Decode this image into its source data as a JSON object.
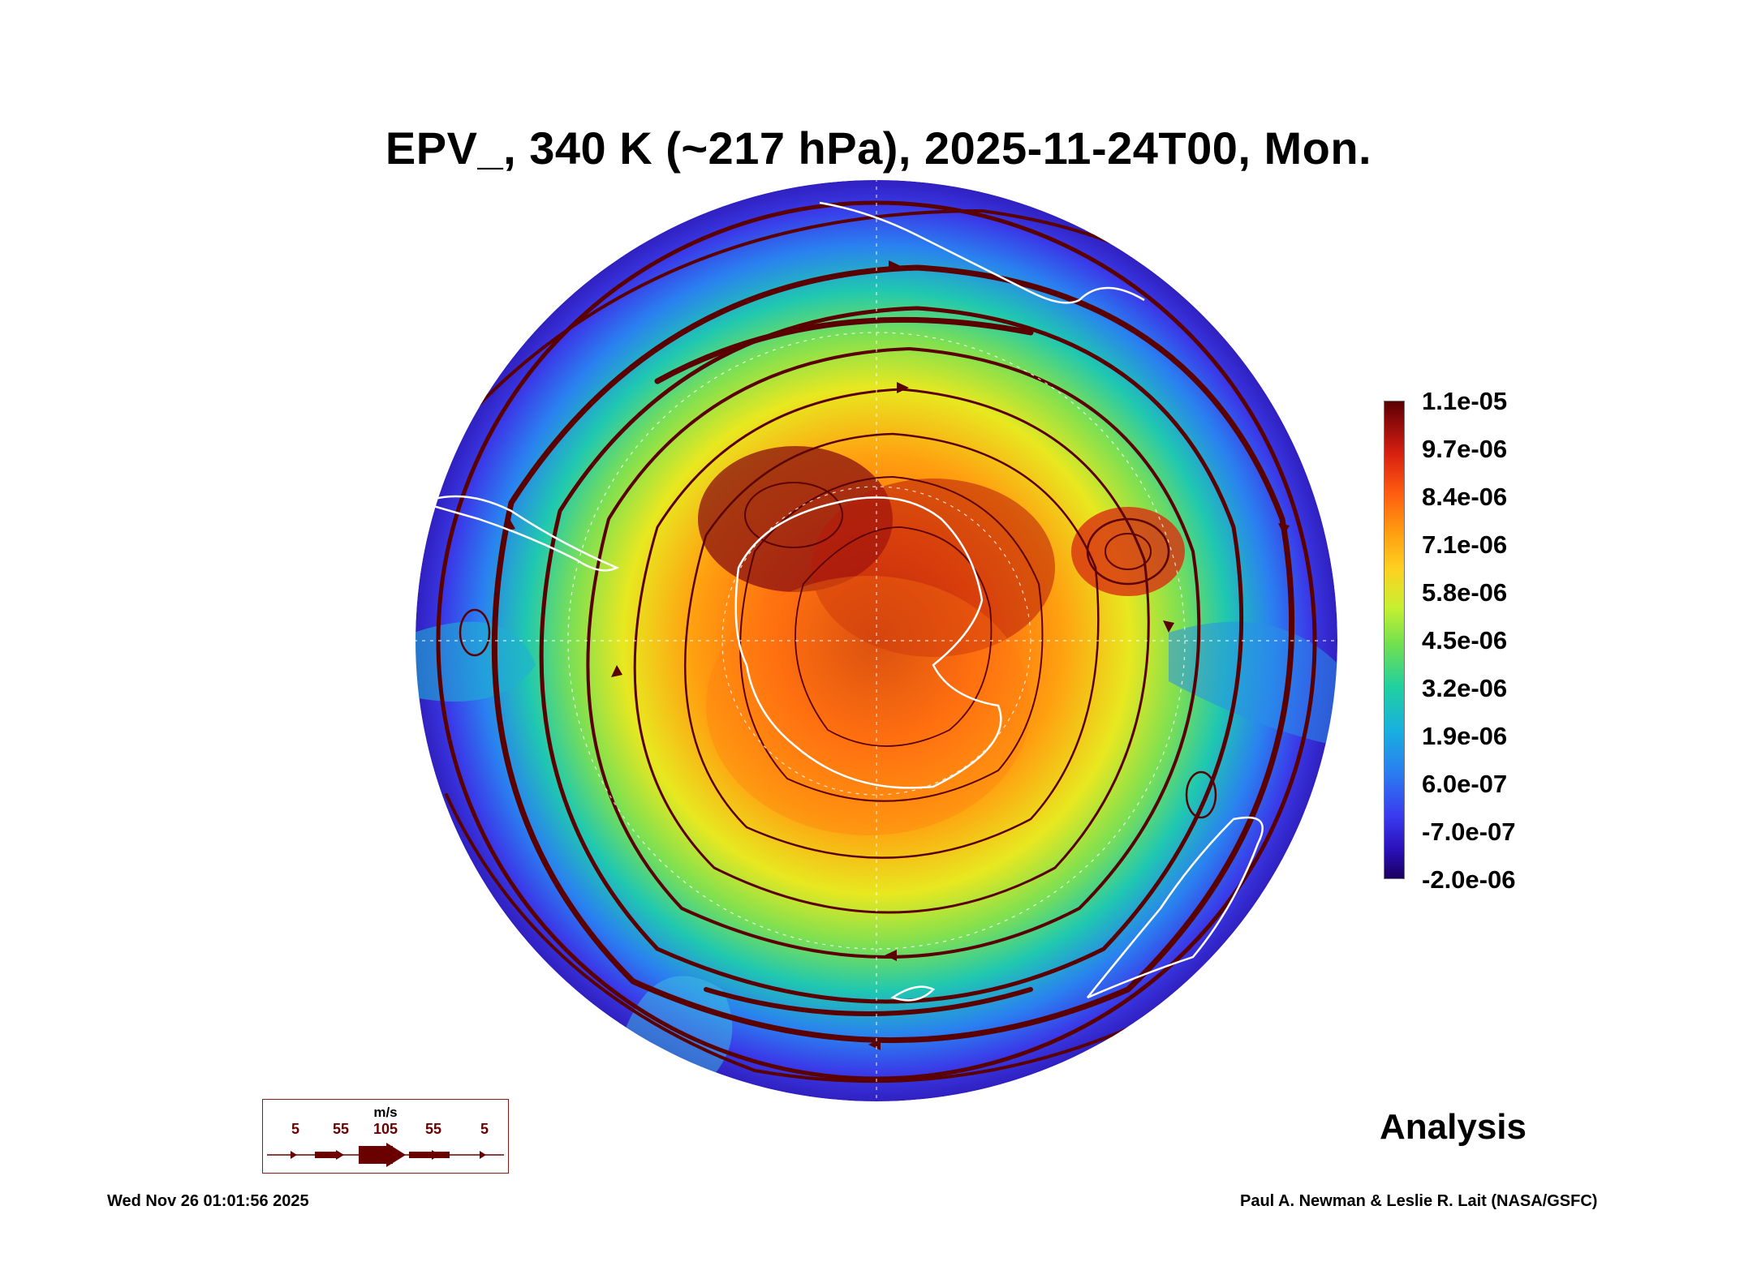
{
  "title": "EPV_, 340 K (~217 hPa), 2025-11-24T00, Mon.",
  "colorbar": {
    "labels": [
      "1.1e-05",
      "9.7e-06",
      "8.4e-06",
      "7.1e-06",
      "5.8e-06",
      "4.5e-06",
      "3.2e-06",
      "1.9e-06",
      "6.0e-07",
      "-7.0e-07",
      "-2.0e-06"
    ],
    "colors": {
      "min": "#1a0060",
      "mid": "#70e050",
      "max": "#5a0000"
    }
  },
  "wind_legend": {
    "unit": "m/s",
    "values": [
      "5",
      "55",
      "105",
      "55",
      "5"
    ],
    "color": "#6a0000"
  },
  "label_analysis": "Analysis",
  "footer": {
    "timestamp": "Wed Nov 26 01:01:56 2025",
    "credit": "Paul A. Newman & Leslie R. Lait (NASA/GSFC)"
  },
  "map": {
    "projection": "south-polar-stereographic",
    "field": "EPV",
    "icons": [
      "streamline-arrows",
      "coastline",
      "graticule"
    ]
  }
}
